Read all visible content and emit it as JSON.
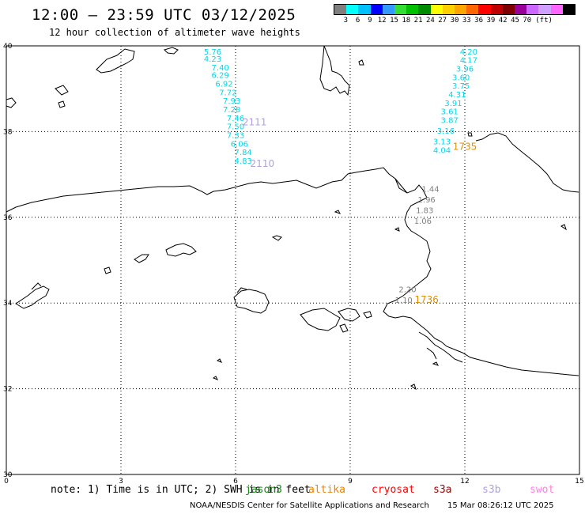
{
  "header": {
    "title": "12:00 — 23:59 UTC 03/12/2025",
    "subtitle": "12 hour collection of altimeter wave heights"
  },
  "scale": {
    "colors": [
      "#7f7f7f",
      "#00ffff",
      "#00bfff",
      "#0000ff",
      "#3399ff",
      "#33dd33",
      "#00c000",
      "#008c00",
      "#ffff00",
      "#ffd000",
      "#ffa500",
      "#ff6600",
      "#ff0000",
      "#c00000",
      "#800000",
      "#990099",
      "#cc66ff",
      "#cfa0ff",
      "#ff66ff",
      "#000000"
    ],
    "labels": [
      "3",
      "6",
      "9",
      "12",
      "15",
      "18",
      "21",
      "24",
      "27",
      "30",
      "33",
      "36",
      "39",
      "42",
      "45",
      "70",
      "(ft)"
    ]
  },
  "chart_data": {
    "type": "scatter",
    "x_ticks": [
      "0",
      "3",
      "6",
      "9",
      "12",
      "15"
    ],
    "y_ticks": [
      "40",
      "38",
      "36",
      "34",
      "32",
      "30"
    ],
    "xlim": [
      0,
      15
    ],
    "ylim": [
      30,
      40
    ],
    "grid": true,
    "track_a": {
      "color": "#00d8e8",
      "points": [
        {
          "lon": 5.4,
          "lat": 39.8,
          "label": "5.76"
        },
        {
          "lon": 5.4,
          "lat": 39.63,
          "label": "4.23"
        },
        {
          "lon": 5.6,
          "lat": 39.43,
          "label": "7.40"
        },
        {
          "lon": 5.6,
          "lat": 39.25,
          "label": "6.29"
        },
        {
          "lon": 5.7,
          "lat": 39.05,
          "label": "6.92"
        },
        {
          "lon": 5.8,
          "lat": 38.85,
          "label": "7.72"
        },
        {
          "lon": 5.9,
          "lat": 38.65,
          "label": "7.93"
        },
        {
          "lon": 5.9,
          "lat": 38.45,
          "label": "7.28"
        },
        {
          "lon": 6.0,
          "lat": 38.25,
          "label": "7.46"
        },
        {
          "lon": 6.0,
          "lat": 38.05,
          "label": "7.50"
        },
        {
          "lon": 6.0,
          "lat": 37.85,
          "label": "7.33"
        },
        {
          "lon": 6.1,
          "lat": 37.65,
          "label": "6.06"
        },
        {
          "lon": 6.2,
          "lat": 37.45,
          "label": "7.84"
        },
        {
          "lon": 6.2,
          "lat": 37.25,
          "label": "4.83"
        }
      ]
    },
    "track_b": {
      "color": "#00d8e8",
      "points": [
        {
          "lon": 12.1,
          "lat": 39.8,
          "label": "4.20"
        },
        {
          "lon": 12.1,
          "lat": 39.6,
          "label": "4.17"
        },
        {
          "lon": 12.0,
          "lat": 39.4,
          "label": "3.96"
        },
        {
          "lon": 11.9,
          "lat": 39.2,
          "label": "3.60"
        },
        {
          "lon": 11.9,
          "lat": 39.0,
          "label": "3.75"
        },
        {
          "lon": 11.8,
          "lat": 38.8,
          "label": "4.31"
        },
        {
          "lon": 11.7,
          "lat": 38.6,
          "label": "3.91"
        },
        {
          "lon": 11.6,
          "lat": 38.4,
          "label": "3.61"
        },
        {
          "lon": 11.6,
          "lat": 38.2,
          "label": "3.87"
        },
        {
          "lon": 11.5,
          "lat": 37.95,
          "label": "3.16"
        },
        {
          "lon": 11.4,
          "lat": 37.7,
          "label": "3.13"
        },
        {
          "lon": 11.4,
          "lat": 37.5,
          "label": "4.04"
        }
      ]
    },
    "track_c": {
      "color": "#808080",
      "points": [
        {
          "lon": 11.1,
          "lat": 36.6,
          "label": "1.44"
        },
        {
          "lon": 11.0,
          "lat": 36.35,
          "label": "1.96"
        },
        {
          "lon": 10.95,
          "lat": 36.1,
          "label": "1.83"
        },
        {
          "lon": 10.9,
          "lat": 35.85,
          "label": "1.06"
        },
        {
          "lon": 10.5,
          "lat": 34.25,
          "label": "2.20"
        },
        {
          "lon": 10.4,
          "lat": 34.0,
          "label": "1.10"
        }
      ]
    },
    "time_labels": [
      {
        "lon": 6.5,
        "lat": 38.15,
        "label": "2111",
        "color": "#b0a0e0"
      },
      {
        "lon": 6.7,
        "lat": 37.18,
        "label": "2110",
        "color": "#b0a0e0"
      },
      {
        "lon": 12.0,
        "lat": 37.57,
        "label": "1735",
        "color": "#e09000"
      },
      {
        "lon": 11.0,
        "lat": 34.0,
        "label": "1736",
        "color": "#e09000"
      }
    ]
  },
  "footer": {
    "note": "note: 1) Time is in UTC; 2) SWH is in feet",
    "missions": [
      {
        "name": "jason3",
        "color": "#1a8a1a"
      },
      {
        "name": "altika",
        "color": "#f08000"
      },
      {
        "name": "cryosat",
        "color": "#ff0000"
      },
      {
        "name": "s3a",
        "color": "#a00000"
      },
      {
        "name": "s3b",
        "color": "#b0a0e0"
      },
      {
        "name": "swot",
        "color": "#ff80e0"
      }
    ],
    "credit": "NOAA/NESDIS Center for Satellite Applications and Research",
    "stamp": "15 Mar 08:26:12 UTC 2025"
  }
}
